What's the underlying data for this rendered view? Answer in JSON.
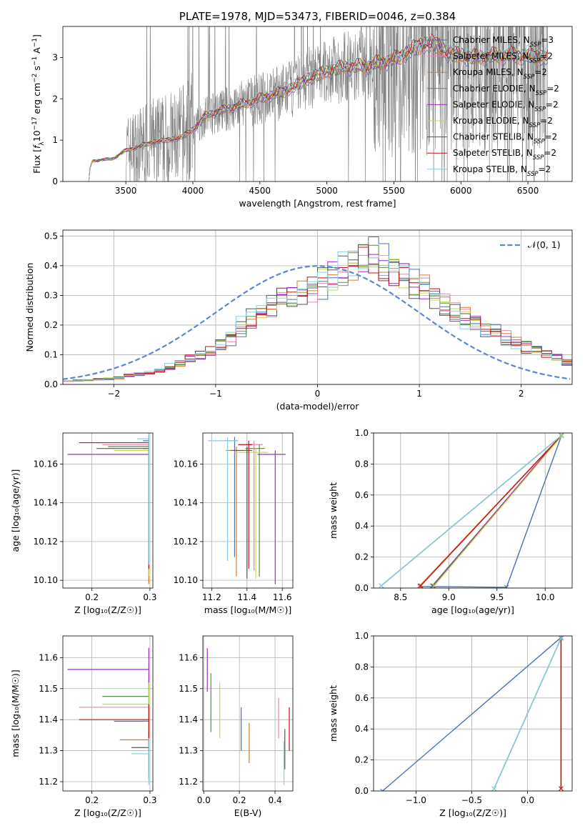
{
  "colors": {
    "Chabrier MILES": "#4c72b0",
    "Salpeter MILES": "#e883b4",
    "Kroupa MILES": "#d87c2a",
    "Chabrier ELODIE": "#4e8f4e",
    "Salpeter ELODIE": "#9b2ec4",
    "Kroupa ELODIE": "#c8d94a",
    "Chabrier STELIB": "#555555",
    "Salpeter STELIB": "#c0141a",
    "Kroupa STELIB": "#86d0dd",
    "data": "#808080",
    "normal": "#5b86d6"
  },
  "chart_data": [
    {
      "id": "spectrum",
      "type": "line",
      "title": "PLATE=1978, MJD=53473, FIBERID=0046, z=0.384",
      "xlabel": "wavelength [Angstrom, rest frame]",
      "ylabel_parts": [
        "Flux [",
        "f",
        "λ",
        "10",
        "−17",
        " erg cm",
        "−2",
        " s",
        "−1",
        " A",
        "−1",
        "]"
      ],
      "xlim": [
        3030,
        6830
      ],
      "ylim": [
        0,
        3.75
      ],
      "xticks": [
        3500,
        4000,
        4500,
        5000,
        5500,
        6000,
        6500
      ],
      "yticks": [
        0,
        1,
        2,
        3
      ],
      "legend": [
        {
          "name": "Chabrier MILES",
          "nssp": "3"
        },
        {
          "name": "Salpeter MILES",
          "nssp": "2"
        },
        {
          "name": "Kroupa MILES",
          "nssp": "2"
        },
        {
          "name": "Chabrier ELODIE",
          "nssp": "2"
        },
        {
          "name": "Salpeter ELODIE",
          "nssp": "2"
        },
        {
          "name": "Kroupa ELODIE",
          "nssp": "2"
        },
        {
          "name": "Chabrier STELIB",
          "nssp": "2"
        },
        {
          "name": "Salpeter STELIB",
          "nssp": "2"
        },
        {
          "name": "Kroupa STELIB",
          "nssp": "2"
        }
      ],
      "continuum": {
        "x": [
          3200,
          3250,
          3400,
          3500,
          3700,
          3900,
          4000,
          4100,
          4300,
          4500,
          4700,
          4900,
          5100,
          5300,
          5500,
          5700,
          5800,
          5900,
          6100,
          6300,
          6500,
          6650
        ],
        "y": [
          0.0,
          0.5,
          0.55,
          0.75,
          0.95,
          1.05,
          1.25,
          1.6,
          1.8,
          2.0,
          2.2,
          2.55,
          2.75,
          2.8,
          2.95,
          3.3,
          3.35,
          3.1,
          3.0,
          3.05,
          3.05,
          3.0
        ]
      },
      "data_range": [
        3500,
        6650
      ]
    },
    {
      "id": "residuals",
      "type": "step",
      "xlabel": "(data-model)/error",
      "ylabel": "Normed distribution",
      "xlim": [
        -2.5,
        2.5
      ],
      "ylim": [
        0,
        0.52
      ],
      "xticks": [
        -2,
        -1,
        0,
        1,
        2
      ],
      "yticks": [
        0.0,
        0.1,
        0.2,
        0.3,
        0.4,
        0.5
      ],
      "legend_label": "𝒩(0, 1)",
      "envelope": {
        "x": [
          -2.5,
          -2.0,
          -1.5,
          -1.0,
          -0.5,
          0.0,
          0.5,
          1.0,
          1.5,
          2.0,
          2.5
        ],
        "y": [
          0.01,
          0.02,
          0.05,
          0.12,
          0.26,
          0.33,
          0.44,
          0.33,
          0.21,
          0.13,
          0.07
        ]
      }
    },
    {
      "id": "z-age",
      "type": "errorbar",
      "xlabel": "Z [log₁₀(Z/Z☉)]",
      "ylabel": "age  [log₁₀(age/yr)]",
      "xlim": [
        0.15,
        0.305
      ],
      "ylim": [
        10.096,
        10.176
      ],
      "xticks": [
        0.2,
        0.3
      ],
      "yticks": [
        10.1,
        10.12,
        10.14,
        10.16
      ],
      "points": [
        {
          "s": "Chabrier MILES",
          "x": 0.298,
          "y": 10.172,
          "xerr": [
            0.01,
            0.0
          ],
          "yerr": [
            0.07,
            0.003
          ]
        },
        {
          "s": "Salpeter MILES",
          "x": 0.298,
          "y": 10.17,
          "xerr": [
            0.08,
            0.0
          ],
          "yerr": [
            0.07,
            0.003
          ]
        },
        {
          "s": "Kroupa MILES",
          "x": 0.298,
          "y": 10.168,
          "xerr": [
            0.01,
            0.0
          ],
          "yerr": [
            0.07,
            0.003
          ]
        },
        {
          "s": "Chabrier ELODIE",
          "x": 0.298,
          "y": 10.169,
          "xerr": [
            0.07,
            0.0
          ],
          "yerr": [
            0.06,
            0.003
          ]
        },
        {
          "s": "Salpeter ELODIE",
          "x": 0.298,
          "y": 10.165,
          "xerr": [
            0.14,
            0.0
          ],
          "yerr": [
            0.062,
            0.003
          ]
        },
        {
          "s": "Kroupa ELODIE",
          "x": 0.298,
          "y": 10.167,
          "xerr": [
            0.06,
            0.0
          ],
          "yerr": [
            0.065,
            0.003
          ]
        },
        {
          "s": "Chabrier STELIB",
          "x": 0.298,
          "y": 10.168,
          "xerr": [
            0.09,
            0.0
          ],
          "yerr": [
            0.06,
            0.003
          ]
        },
        {
          "s": "Salpeter STELIB",
          "x": 0.298,
          "y": 10.171,
          "xerr": [
            0.12,
            0.0
          ],
          "yerr": [
            0.065,
            0.003
          ]
        },
        {
          "s": "Kroupa STELIB",
          "x": 0.298,
          "y": 10.173,
          "xerr": [
            0.02,
            0.0
          ],
          "yerr": [
            0.065,
            0.003
          ]
        }
      ]
    },
    {
      "id": "mass-age",
      "type": "errorbar",
      "xlabel": "mass [log₁₀(M/M☉)]",
      "ylabel": "",
      "xlim": [
        11.15,
        11.66
      ],
      "ylim": [
        10.096,
        10.176
      ],
      "xticks": [
        11.2,
        11.4,
        11.6
      ],
      "yticks": [
        10.1,
        10.12,
        10.14,
        10.16
      ],
      "points": [
        {
          "s": "Chabrier MILES",
          "x": 11.33,
          "y": 10.172,
          "xerr": [
            0.06,
            0.02
          ],
          "yerr": [
            0.06,
            0.002
          ]
        },
        {
          "s": "Salpeter MILES",
          "x": 11.44,
          "y": 10.17,
          "xerr": [
            0.05,
            0.05
          ],
          "yerr": [
            0.065,
            0.002
          ]
        },
        {
          "s": "Kroupa MILES",
          "x": 11.34,
          "y": 10.167,
          "xerr": [
            0.06,
            0.04
          ],
          "yerr": [
            0.065,
            0.002
          ]
        },
        {
          "s": "Chabrier ELODIE",
          "x": 11.47,
          "y": 10.168,
          "xerr": [
            0.08,
            0.03
          ],
          "yerr": [
            0.066,
            0.002
          ]
        },
        {
          "s": "Salpeter ELODIE",
          "x": 11.56,
          "y": 10.165,
          "xerr": [
            0.1,
            0.06
          ],
          "yerr": [
            0.067,
            0.002
          ]
        },
        {
          "s": "Kroupa ELODIE",
          "x": 11.45,
          "y": 10.166,
          "xerr": [
            0.12,
            0.07
          ],
          "yerr": [
            0.065,
            0.002
          ]
        },
        {
          "s": "Chabrier STELIB",
          "x": 11.4,
          "y": 10.167,
          "xerr": [
            0.09,
            0.03
          ],
          "yerr": [
            0.066,
            0.002
          ]
        },
        {
          "s": "Salpeter STELIB",
          "x": 11.41,
          "y": 10.17,
          "xerr": [
            0.06,
            0.02
          ],
          "yerr": [
            0.064,
            0.002
          ]
        },
        {
          "s": "Kroupa STELIB",
          "x": 11.29,
          "y": 10.172,
          "xerr": [
            0.11,
            0.06
          ],
          "yerr": [
            0.062,
            0.002
          ]
        }
      ]
    },
    {
      "id": "age-weight",
      "type": "line",
      "xlabel": "age  [log₁₀(age/yr)]",
      "ylabel": "mass weight",
      "xlim": [
        8.22,
        10.28
      ],
      "ylim": [
        0,
        1.0
      ],
      "xticks": [
        8.5,
        9.0,
        9.5,
        10.0
      ],
      "yticks": [
        0.0,
        0.2,
        0.4,
        0.6,
        0.8,
        1.0
      ],
      "series": [
        {
          "s": "Chabrier MILES",
          "x": [
            8.7,
            9.6,
            10.17
          ],
          "y": [
            0.01,
            0.005,
            0.985
          ]
        },
        {
          "s": "Salpeter MILES",
          "x": [
            8.3,
            10.17
          ],
          "y": [
            0.015,
            0.985
          ]
        },
        {
          "s": "Kroupa MILES",
          "x": [
            8.7,
            10.17
          ],
          "y": [
            0.015,
            0.985
          ]
        },
        {
          "s": "Chabrier ELODIE",
          "x": [
            8.83,
            10.17
          ],
          "y": [
            0.015,
            0.985
          ]
        },
        {
          "s": "Salpeter ELODIE",
          "x": [
            8.84,
            10.165
          ],
          "y": [
            0.015,
            0.985
          ]
        },
        {
          "s": "Kroupa ELODIE",
          "x": [
            8.85,
            10.17
          ],
          "y": [
            0.015,
            0.98
          ]
        },
        {
          "s": "Chabrier STELIB",
          "x": [
            8.3,
            10.17
          ],
          "y": [
            0.015,
            0.985
          ]
        },
        {
          "s": "Salpeter STELIB",
          "x": [
            8.71,
            10.17
          ],
          "y": [
            0.015,
            0.985
          ]
        },
        {
          "s": "Kroupa STELIB",
          "x": [
            8.3,
            10.17
          ],
          "y": [
            0.015,
            0.985
          ]
        }
      ]
    },
    {
      "id": "z-mass",
      "type": "errorbar",
      "xlabel": "Z [log₁₀(Z/Z☉)]",
      "ylabel": "mass [log₁₀(M/M☉)]",
      "xlim": [
        0.15,
        0.305
      ],
      "ylim": [
        11.17,
        11.67
      ],
      "xticks": [
        0.2,
        0.3
      ],
      "yticks": [
        11.2,
        11.3,
        11.4,
        11.5,
        11.6
      ],
      "points": [
        {
          "s": "Chabrier MILES",
          "x": 0.298,
          "y": 11.395,
          "xerr": [
            0.06,
            0.0
          ],
          "yerr": [
            0.1,
            0.05
          ]
        },
        {
          "s": "Salpeter MILES",
          "x": 0.298,
          "y": 11.44,
          "xerr": [
            0.12,
            0.0
          ],
          "yerr": [
            0.1,
            0.05
          ]
        },
        {
          "s": "Kroupa MILES",
          "x": 0.298,
          "y": 11.335,
          "xerr": [
            0.05,
            0.0
          ],
          "yerr": [
            0.1,
            0.05
          ]
        },
        {
          "s": "Chabrier ELODIE",
          "x": 0.298,
          "y": 11.475,
          "xerr": [
            0.08,
            0.0
          ],
          "yerr": [
            0.1,
            0.05
          ]
        },
        {
          "s": "Salpeter ELODIE",
          "x": 0.298,
          "y": 11.562,
          "xerr": [
            0.14,
            0.0
          ],
          "yerr": [
            0.07,
            0.07
          ]
        },
        {
          "s": "Kroupa ELODIE",
          "x": 0.298,
          "y": 11.45,
          "xerr": [
            0.08,
            0.0
          ],
          "yerr": [
            0.1,
            0.07
          ]
        },
        {
          "s": "Chabrier STELIB",
          "x": 0.298,
          "y": 11.31,
          "xerr": [
            0.03,
            0.0
          ],
          "yerr": [
            0.1,
            0.05
          ]
        },
        {
          "s": "Salpeter STELIB",
          "x": 0.298,
          "y": 11.4,
          "xerr": [
            0.12,
            0.0
          ],
          "yerr": [
            0.1,
            0.05
          ]
        },
        {
          "s": "Kroupa STELIB",
          "x": 0.298,
          "y": 11.29,
          "xerr": [
            0.03,
            0.0
          ],
          "yerr": [
            0.1,
            0.05
          ]
        }
      ]
    },
    {
      "id": "ebv-mass",
      "type": "errorbar",
      "xlabel": "E(B-V)",
      "ylabel": "",
      "xlim": [
        -0.005,
        0.5
      ],
      "ylim": [
        11.17,
        11.67
      ],
      "xticks": [
        0.0,
        0.2,
        0.4
      ],
      "yticks": [
        11.2,
        11.3,
        11.4,
        11.5,
        11.6
      ],
      "points": [
        {
          "s": "Chabrier MILES",
          "x": 0.21,
          "y": 11.37,
          "yerr": [
            0.07,
            0.07
          ]
        },
        {
          "s": "Salpeter MILES",
          "x": 0.42,
          "y": 11.4,
          "yerr": [
            0.06,
            0.07
          ]
        },
        {
          "s": "Kroupa MILES",
          "x": 0.255,
          "y": 11.33,
          "yerr": [
            0.07,
            0.06
          ]
        },
        {
          "s": "Chabrier ELODIE",
          "x": 0.04,
          "y": 11.45,
          "yerr": [
            0.09,
            0.1
          ]
        },
        {
          "s": "Salpeter ELODIE",
          "x": 0.02,
          "y": 11.56,
          "yerr": [
            0.07,
            0.07
          ]
        },
        {
          "s": "Kroupa ELODIE",
          "x": 0.09,
          "y": 11.43,
          "yerr": [
            0.09,
            0.09
          ]
        },
        {
          "s": "Chabrier STELIB",
          "x": 0.455,
          "y": 11.31,
          "yerr": [
            0.07,
            0.06
          ]
        },
        {
          "s": "Salpeter STELIB",
          "x": 0.48,
          "y": 11.37,
          "yerr": [
            0.07,
            0.07
          ]
        },
        {
          "s": "Kroupa STELIB",
          "x": 0.45,
          "y": 11.26,
          "yerr": [
            0.07,
            0.07
          ]
        }
      ]
    },
    {
      "id": "z-weight",
      "type": "line",
      "xlabel": "Z [log₁₀(Z/Z☉)]",
      "ylabel": "mass weight",
      "xlim": [
        -1.38,
        0.4
      ],
      "ylim": [
        0,
        1.0
      ],
      "xticks": [
        -1.0,
        -0.5,
        0.0
      ],
      "yticks": [
        0.0,
        0.2,
        0.4,
        0.6,
        0.8,
        1.0
      ],
      "series": [
        {
          "s": "Chabrier MILES",
          "x": [
            -1.3,
            0.3
          ],
          "y": [
            0.0,
            0.99
          ]
        },
        {
          "s": "Salpeter MILES",
          "x": [
            -0.3,
            0.3
          ],
          "y": [
            0.015,
            0.985
          ]
        },
        {
          "s": "Kroupa MILES",
          "x": [
            0.3,
            0.3
          ],
          "y": [
            0.015,
            0.985
          ]
        },
        {
          "s": "Chabrier ELODIE",
          "x": [
            0.3,
            0.3
          ],
          "y": [
            0.015,
            0.985
          ]
        },
        {
          "s": "Salpeter ELODIE",
          "x": [
            0.3,
            0.3
          ],
          "y": [
            0.015,
            0.985
          ]
        },
        {
          "s": "Kroupa ELODIE",
          "x": [
            0.3,
            0.3
          ],
          "y": [
            0.015,
            0.985
          ]
        },
        {
          "s": "Chabrier STELIB",
          "x": [
            -0.3,
            0.3
          ],
          "y": [
            0.015,
            0.985
          ]
        },
        {
          "s": "Salpeter STELIB",
          "x": [
            0.3,
            0.3
          ],
          "y": [
            0.015,
            0.985
          ]
        },
        {
          "s": "Kroupa STELIB",
          "x": [
            -0.3,
            0.3
          ],
          "y": [
            0.015,
            0.985
          ]
        }
      ]
    }
  ]
}
